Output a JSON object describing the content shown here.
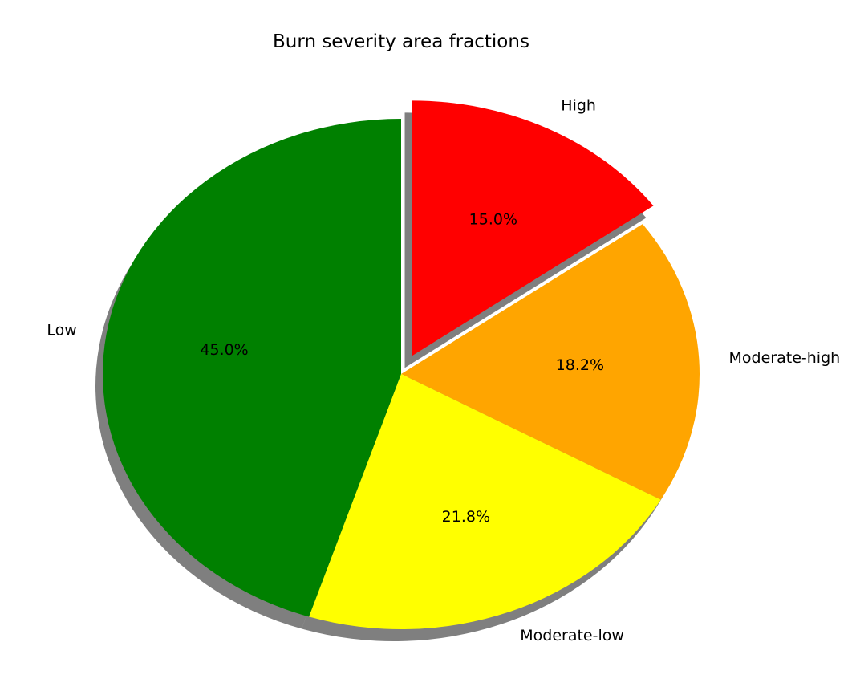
{
  "chart_data": {
    "type": "pie",
    "title": "Burn severity area fractions",
    "start_angle_deg": 90,
    "direction": "clockwise",
    "shadow": true,
    "slices": [
      {
        "label": "High",
        "value": 15.0,
        "percent_label": "15.0%",
        "color": "#ff0000",
        "explode": 0.08
      },
      {
        "label": "Moderate-high",
        "value": 18.2,
        "percent_label": "18.2%",
        "color": "#ffa500",
        "explode": 0
      },
      {
        "label": "Moderate-low",
        "value": 21.8,
        "percent_label": "21.8%",
        "color": "#ffff00",
        "explode": 0
      },
      {
        "label": "Low",
        "value": 45.0,
        "percent_label": "45.0%",
        "color": "#008000",
        "explode": 0
      }
    ]
  }
}
